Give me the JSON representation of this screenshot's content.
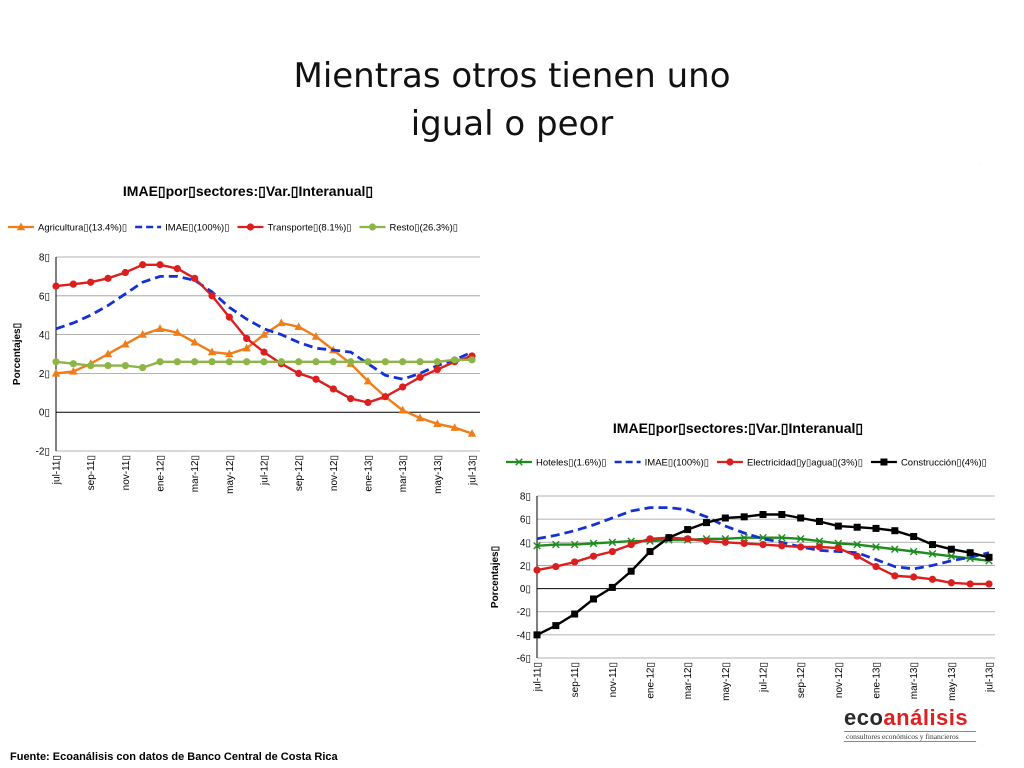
{
  "slide": {
    "title_line1": "Mientras otros tienen uno",
    "title_line2": "igual o peor",
    "footer": "Fuente: Ecoanálisis con datos de Banco  Central de Costa Rica",
    "logo": {
      "text_dark": "eco",
      "text_red": "análisis",
      "tagline": "consultores económicos y financieros"
    }
  },
  "chart_data": [
    {
      "type": "line",
      "title": "IMAE▯por▯sectores:▯Var.▯Interanual▯",
      "ylabel": "Porcentajes▯",
      "ylim": [
        -2,
        8
      ],
      "yticks": [
        {
          "v": -2,
          "label": "-2▯"
        },
        {
          "v": 0,
          "label": "0▯"
        },
        {
          "v": 2,
          "label": "2▯"
        },
        {
          "v": 4,
          "label": "4▯"
        },
        {
          "v": 6,
          "label": "6▯"
        },
        {
          "v": 8,
          "label": "8▯"
        }
      ],
      "grid": true,
      "legend_position": "top",
      "categories": [
        "jul-11",
        "ago-11",
        "sep-11",
        "oct-11",
        "nov-11",
        "dic-11",
        "ene-12",
        "feb-12",
        "mar-12",
        "abr-12",
        "may-12",
        "jun-12",
        "jul-12",
        "ago-12",
        "sep-12",
        "oct-12",
        "nov-12",
        "dic-12",
        "ene-13",
        "feb-13",
        "mar-13",
        "abr-13",
        "may-13",
        "jun-13",
        "jul-13"
      ],
      "tick_labels": [
        "jul-11▯",
        "sep-11▯",
        "nov-11▯",
        "ene-12▯",
        "mar-12▯",
        "may-12▯",
        "jul-12▯",
        "sep-12▯",
        "nov-12▯",
        "ene-13▯",
        "mar-13▯",
        "may-13▯",
        "jul-13▯"
      ],
      "series": [
        {
          "name": "Agricultura▯(13.4%)▯",
          "color": "#f07d1a",
          "style": "solid",
          "marker": "triangle",
          "values": [
            2.0,
            2.1,
            2.5,
            3.0,
            3.5,
            4.0,
            4.3,
            4.1,
            3.6,
            3.1,
            3.0,
            3.3,
            4.0,
            4.6,
            4.4,
            3.9,
            3.2,
            2.5,
            1.6,
            0.8,
            0.1,
            -0.3,
            -0.6,
            -0.8,
            -1.1
          ]
        },
        {
          "name": "IMAE▯(100%)▯",
          "color": "#1432d2",
          "style": "dash",
          "marker": "none",
          "values": [
            4.3,
            4.6,
            5.0,
            5.5,
            6.1,
            6.7,
            7.0,
            7.0,
            6.8,
            6.2,
            5.4,
            4.8,
            4.3,
            4.0,
            3.6,
            3.3,
            3.2,
            3.1,
            2.5,
            1.9,
            1.7,
            2.0,
            2.4,
            2.7,
            3.1
          ]
        },
        {
          "name": "Transporte▯(8.1%)▯",
          "color": "#dc1e1e",
          "style": "solid",
          "marker": "circle",
          "values": [
            6.5,
            6.6,
            6.7,
            6.9,
            7.2,
            7.6,
            7.6,
            7.4,
            6.9,
            6.0,
            4.9,
            3.8,
            3.1,
            2.5,
            2.0,
            1.7,
            1.2,
            0.7,
            0.5,
            0.8,
            1.3,
            1.8,
            2.2,
            2.6,
            2.9
          ]
        },
        {
          "name": "Resto▯(26.3%)▯",
          "color": "#8cb446",
          "style": "solid",
          "marker": "circle",
          "values": [
            2.6,
            2.5,
            2.4,
            2.4,
            2.4,
            2.3,
            2.6,
            2.6,
            2.6,
            2.6,
            2.6,
            2.6,
            2.6,
            2.6,
            2.6,
            2.6,
            2.6,
            2.6,
            2.6,
            2.6,
            2.6,
            2.6,
            2.6,
            2.7,
            2.7
          ]
        }
      ]
    },
    {
      "type": "line",
      "title": "IMAE▯por▯sectores:▯Var.▯Interanual▯",
      "ylabel": "Porcentajes▯",
      "ylim": [
        -6,
        8
      ],
      "yticks": [
        {
          "v": -6,
          "label": "-6▯"
        },
        {
          "v": -4,
          "label": "-4▯"
        },
        {
          "v": -2,
          "label": "-2▯"
        },
        {
          "v": 0,
          "label": "0▯"
        },
        {
          "v": 2,
          "label": "2▯"
        },
        {
          "v": 4,
          "label": "4▯"
        },
        {
          "v": 6,
          "label": "6▯"
        },
        {
          "v": 8,
          "label": "8▯"
        }
      ],
      "grid": true,
      "legend_position": "top",
      "categories": [
        "jul-11",
        "ago-11",
        "sep-11",
        "oct-11",
        "nov-11",
        "dic-11",
        "ene-12",
        "feb-12",
        "mar-12",
        "abr-12",
        "may-12",
        "jun-12",
        "jul-12",
        "ago-12",
        "sep-12",
        "oct-12",
        "nov-12",
        "dic-12",
        "ene-13",
        "feb-13",
        "mar-13",
        "abr-13",
        "may-13",
        "jun-13",
        "jul-13"
      ],
      "tick_labels": [
        "jul-11▯",
        "sep-11▯",
        "nov-11▯",
        "ene-12▯",
        "mar-12▯",
        "may-12▯",
        "jul-12▯",
        "sep-12▯",
        "nov-12▯",
        "ene-13▯",
        "mar-13▯",
        "may-13▯",
        "jul-13▯"
      ],
      "series": [
        {
          "name": "Hoteles▯(1.6%)▯",
          "color": "#1e8c1e",
          "style": "solid",
          "marker": "x",
          "values": [
            3.7,
            3.8,
            3.8,
            3.9,
            4.0,
            4.1,
            4.1,
            4.2,
            4.2,
            4.3,
            4.3,
            4.4,
            4.4,
            4.4,
            4.3,
            4.1,
            3.9,
            3.8,
            3.6,
            3.4,
            3.2,
            3.0,
            2.8,
            2.6,
            2.4
          ]
        },
        {
          "name": "IMAE▯(100%)▯",
          "color": "#1432d2",
          "style": "dash",
          "marker": "none",
          "values": [
            4.3,
            4.6,
            5.0,
            5.5,
            6.1,
            6.7,
            7.0,
            7.0,
            6.8,
            6.2,
            5.4,
            4.8,
            4.3,
            4.0,
            3.6,
            3.3,
            3.2,
            3.1,
            2.5,
            1.9,
            1.7,
            2.0,
            2.4,
            2.7,
            3.1
          ]
        },
        {
          "name": "Electricidad▯y▯agua▯(3%)▯",
          "color": "#dc1e1e",
          "style": "solid",
          "marker": "circle",
          "values": [
            1.6,
            1.9,
            2.3,
            2.8,
            3.2,
            3.8,
            4.3,
            4.4,
            4.3,
            4.1,
            4.0,
            3.9,
            3.8,
            3.7,
            3.6,
            3.6,
            3.5,
            2.8,
            1.9,
            1.1,
            1.0,
            0.8,
            0.5,
            0.4,
            0.4
          ]
        },
        {
          "name": "Construcción▯(4%)▯",
          "color": "#000000",
          "style": "solid",
          "marker": "square",
          "values": [
            -4.0,
            -3.2,
            -2.2,
            -0.9,
            0.1,
            1.5,
            3.2,
            4.4,
            5.1,
            5.7,
            6.1,
            6.2,
            6.4,
            6.4,
            6.1,
            5.8,
            5.4,
            5.3,
            5.2,
            5.0,
            4.5,
            3.8,
            3.4,
            3.1,
            2.7
          ]
        }
      ]
    }
  ]
}
